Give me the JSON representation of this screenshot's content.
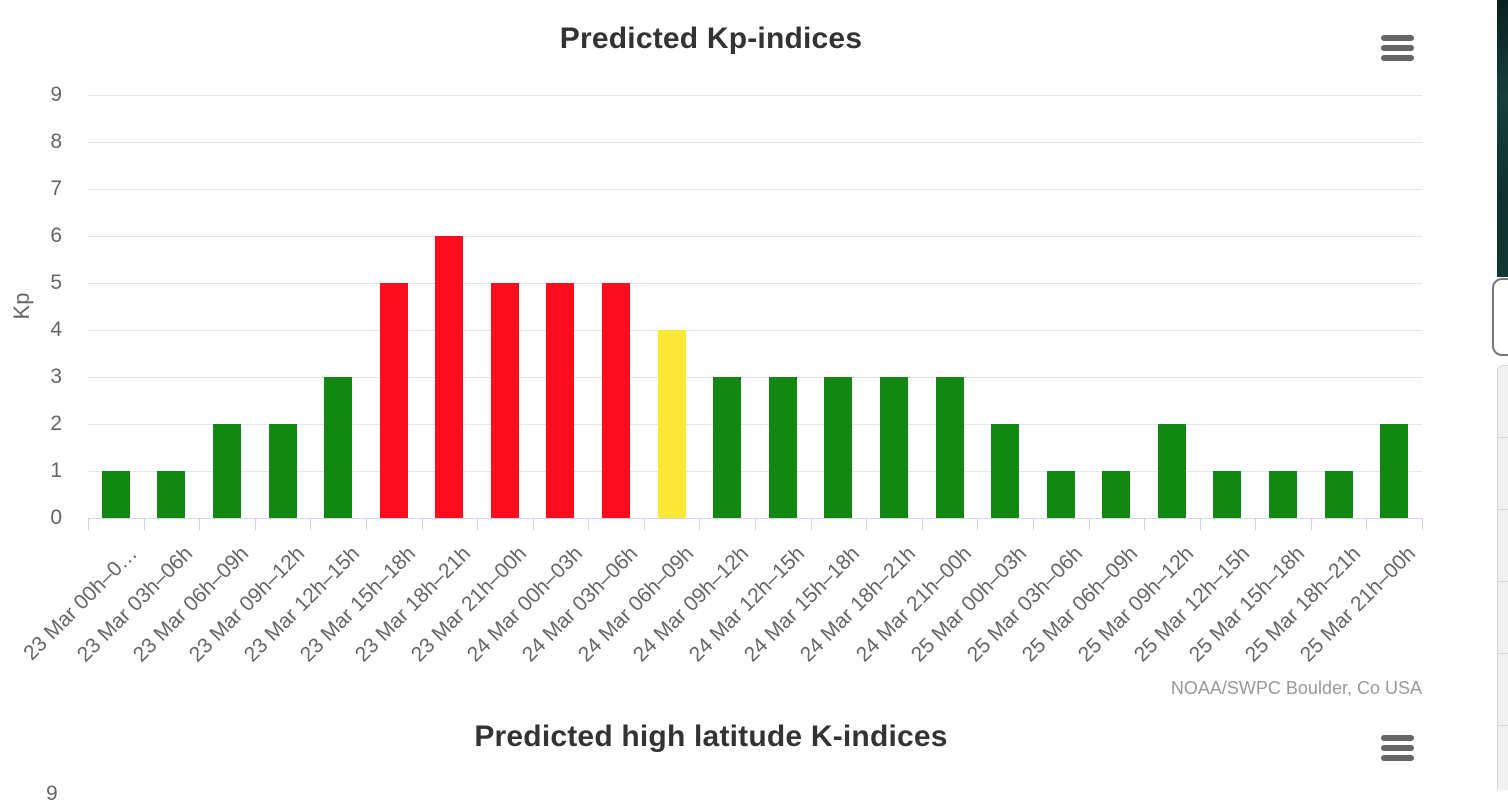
{
  "colors": {
    "green": "#128712",
    "red": "#fb0d1e",
    "yellow": "#fee837",
    "title_text": "#333333",
    "axis_label_text": "#666666",
    "grid_line": "#e6e6e6",
    "axis_line": "#ccd6eb",
    "credits_text": "#999999",
    "menu_icon": "#666666"
  },
  "chart_data": [
    {
      "type": "bar",
      "title": "Predicted Kp-indices",
      "xlabel": "",
      "ylabel": "Kp",
      "ylim": [
        0,
        9
      ],
      "yticks": [
        0,
        1,
        2,
        3,
        4,
        5,
        6,
        7,
        8,
        9
      ],
      "grid": true,
      "legend": false,
      "menu_icon": "hamburger-menu-icon",
      "categories": [
        "23 Mar 00h–0…",
        "23 Mar 03h–06h",
        "23 Mar 06h–09h",
        "23 Mar 09h–12h",
        "23 Mar 12h–15h",
        "23 Mar 15h–18h",
        "23 Mar 18h–21h",
        "23 Mar 21h–00h",
        "24 Mar 00h–03h",
        "24 Mar 03h–06h",
        "24 Mar 06h–09h",
        "24 Mar 09h–12h",
        "24 Mar 12h–15h",
        "24 Mar 15h–18h",
        "24 Mar 18h–21h",
        "24 Mar 21h–00h",
        "25 Mar 00h–03h",
        "25 Mar 03h–06h",
        "25 Mar 06h–09h",
        "25 Mar 09h–12h",
        "25 Mar 12h–15h",
        "25 Mar 15h–18h",
        "25 Mar 18h–21h",
        "25 Mar 21h–00h"
      ],
      "values": [
        1,
        1,
        2,
        2,
        3,
        5,
        6,
        5,
        5,
        5,
        4,
        3,
        3,
        3,
        3,
        3,
        2,
        1,
        1,
        2,
        1,
        1,
        1,
        2
      ],
      "bar_colors": [
        "green",
        "green",
        "green",
        "green",
        "green",
        "red",
        "red",
        "red",
        "red",
        "red",
        "yellow",
        "green",
        "green",
        "green",
        "green",
        "green",
        "green",
        "green",
        "green",
        "green",
        "green",
        "green",
        "green",
        "green"
      ],
      "credits": "NOAA/SWPC Boulder, Co USA"
    },
    {
      "type": "bar",
      "title": "Predicted high latitude K-indices",
      "visible_ytick": "9",
      "clipped_by_viewport": true,
      "menu_icon": "hamburger-menu-icon"
    }
  ],
  "right_edge": {
    "dark_strip_color": "#12332f",
    "button_border_color": "#777777",
    "button_fill": "#ffffff",
    "panel_color": "#f1f1f1",
    "panel_border_color": "#d9d9d9"
  }
}
